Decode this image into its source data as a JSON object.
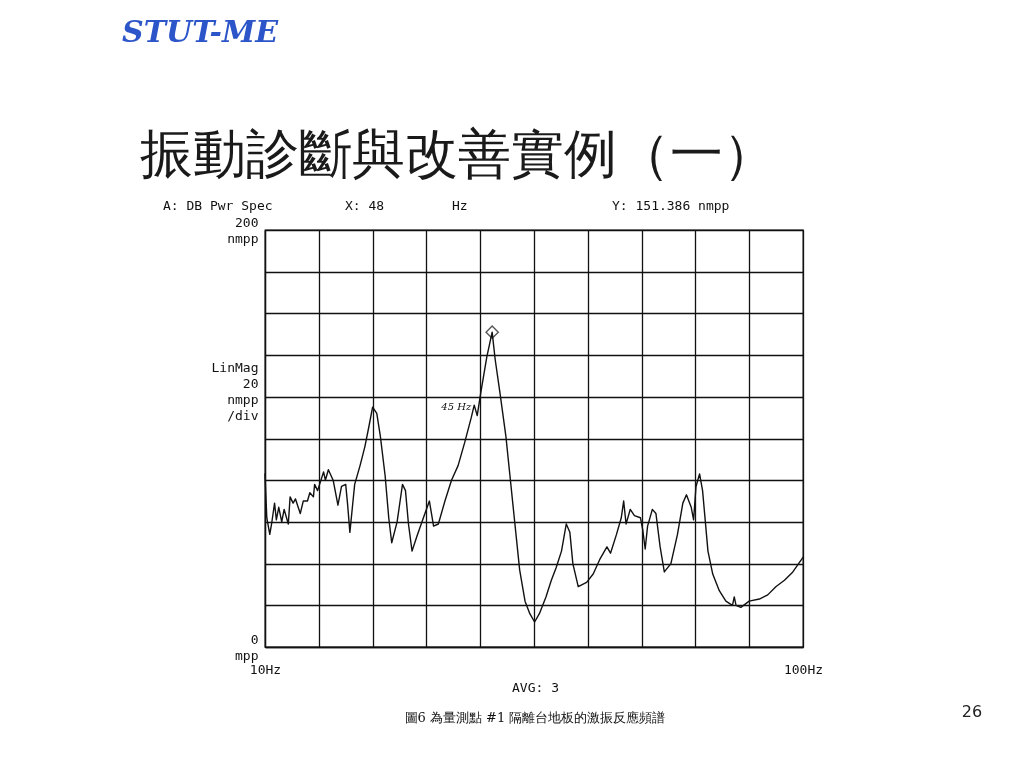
{
  "chart_data": {
    "type": "line",
    "title": "振動診斷與改善實例（一）",
    "ylabel": "LinMag 20 nmpp /div",
    "xlim": [
      10,
      100
    ],
    "xticks": [
      {
        "value": 10,
        "label": "10Hz"
      },
      {
        "value": 19,
        "label": null
      },
      {
        "value": 28,
        "label": null
      },
      {
        "value": 37,
        "label": null
      },
      {
        "value": 46,
        "label": null
      },
      {
        "value": 55,
        "label": null
      },
      {
        "value": 64,
        "label": null
      },
      {
        "value": 73,
        "label": null
      },
      {
        "value": 82,
        "label": null
      },
      {
        "value": 91,
        "label": null
      },
      {
        "value": 100,
        "label": "100Hz"
      }
    ],
    "ylim": [
      0,
      200
    ],
    "yticks": [
      {
        "value": 0,
        "label": "0 mpp"
      },
      {
        "value": 20,
        "label": null
      },
      {
        "value": 40,
        "label": null
      },
      {
        "value": 60,
        "label": null
      },
      {
        "value": 80,
        "label": null
      },
      {
        "value": 100,
        "label": null
      },
      {
        "value": 120,
        "label": null
      },
      {
        "value": 140,
        "label": null
      },
      {
        "value": 160,
        "label": null
      },
      {
        "value": 180,
        "label": null
      },
      {
        "value": 200,
        "label": "200 nmpp"
      }
    ],
    "grid": true,
    "series": [
      {
        "color": "#111111",
        "line_style": "solid",
        "x": [
          10.0,
          10.3,
          10.8,
          11.1,
          11.6,
          11.9,
          12.3,
          12.8,
          13.2,
          13.9,
          14.2,
          14.7,
          15.1,
          15.9,
          16.4,
          17.1,
          17.5,
          18.1,
          18.3,
          18.8,
          19.8,
          20.1,
          20.6,
          21.4,
          22.2,
          22.8,
          23.5,
          23.8,
          24.2,
          25.0,
          25.9,
          26.7,
          27.4,
          28.0,
          28.7,
          29.3,
          30.1,
          30.7,
          31.2,
          32.1,
          33.0,
          33.5,
          34.0,
          34.6,
          35.4,
          36.5,
          37.5,
          38.2,
          39.0,
          40.1,
          41.2,
          42.3,
          43.4,
          44.5,
          45.0,
          45.5,
          46.1,
          47.1,
          48.0,
          48.5,
          49.3,
          50.3,
          51.7,
          52.6,
          53.5,
          54.3,
          55.1,
          55.9,
          57.0,
          57.9,
          58.7,
          59.6,
          60.4,
          61.0,
          61.5,
          62.4,
          63.8,
          64.9,
          66.0,
          67.2,
          67.8,
          68.8,
          69.6,
          70.0,
          70.4,
          71.1,
          71.8,
          72.8,
          73.2,
          73.6,
          74.0,
          74.8,
          75.4,
          76.1,
          76.8,
          77.9,
          79.0,
          79.9,
          80.5,
          81.3,
          81.7,
          82.1,
          82.7,
          83.2,
          84.1,
          84.9,
          86.0,
          87.1,
          88.2,
          88.5,
          88.8,
          89.6,
          91.0,
          92.7,
          94.1,
          95.5,
          96.9,
          98.3,
          100.0
        ],
        "values": [
          83,
          62,
          54,
          59,
          69,
          61,
          67,
          60,
          66,
          59,
          72,
          69,
          71,
          64,
          70,
          70,
          74,
          72,
          78,
          75,
          84,
          80,
          85,
          80,
          68,
          77,
          78,
          69,
          55,
          78,
          87,
          96,
          106,
          115,
          112,
          101,
          82,
          62,
          50,
          60,
          78,
          75,
          59,
          46,
          53,
          62,
          70,
          58,
          59,
          70,
          80,
          87,
          98,
          110,
          116,
          111,
          122,
          139,
          151,
          138,
          122,
          101,
          62,
          37,
          22,
          16,
          12,
          16,
          24,
          32,
          38,
          46,
          59,
          55,
          40,
          29,
          31,
          35,
          42,
          48,
          45,
          54,
          62,
          70,
          59,
          66,
          63,
          62,
          56,
          47,
          58,
          66,
          64,
          48,
          36,
          40,
          54,
          69,
          73,
          67,
          61,
          77,
          83,
          75,
          46,
          35,
          27,
          22,
          20,
          24,
          20,
          19,
          22,
          23,
          25,
          29,
          32,
          36,
          43
        ]
      },
      {
        "type": "scatter",
        "marker": "diamond",
        "color": "#111111",
        "x": [
          48
        ],
        "values": [
          151
        ]
      }
    ],
    "annotations": [
      "A: DB Pwr Spec",
      "X: 48",
      "Hz",
      "Y: 151.386 nmpp",
      "AVG: 3",
      {
        "text": "45 Hz",
        "x": 45,
        "y": 115
      },
      "圖6 為量測點 #1 隔離台地板的激振反應頻譜",
      "26",
      "STUT-ME"
    ]
  }
}
